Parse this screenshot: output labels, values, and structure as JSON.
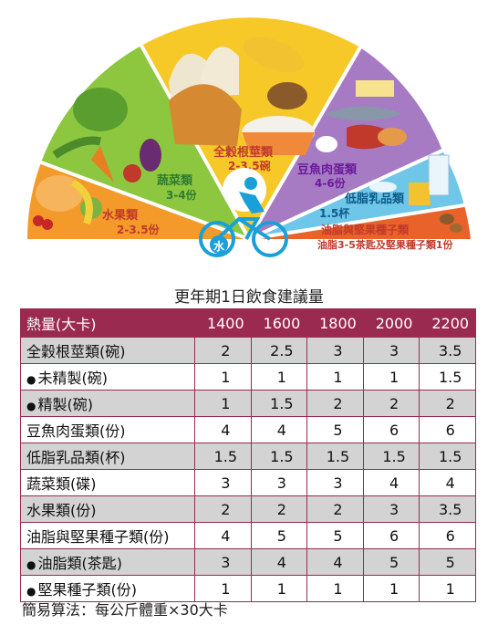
{
  "pyramid": {
    "segments": [
      {
        "name": "水果類",
        "serving": "2-3.5份",
        "color": "#f39a2a"
      },
      {
        "name": "蔬菜類",
        "serving": "3-4份",
        "color": "#8dc63f"
      },
      {
        "name": "全穀根莖類",
        "serving": "2-3.5碗",
        "color": "#f7c928"
      },
      {
        "name": "豆魚肉蛋類",
        "serving": "4-6份",
        "color": "#a77bc4"
      },
      {
        "name": "低脂乳品類",
        "serving": "1.5杯",
        "color": "#6ec6e8"
      },
      {
        "name": "油脂與堅果種子類",
        "serving": "油脂3-5茶匙及堅果種子類1份",
        "color": "#e8622a"
      }
    ],
    "water_label": "水",
    "accent_color": "#1aa0d8"
  },
  "table": {
    "title": "更年期1日飲食建議量",
    "header": {
      "category": "熱量(大卡)",
      "levels": [
        "1400",
        "1600",
        "1800",
        "2000",
        "2200"
      ]
    },
    "rows": [
      {
        "label": "全穀根莖類(碗)",
        "bullet": false,
        "values": [
          "2",
          "2.5",
          "3",
          "3",
          "3.5"
        ]
      },
      {
        "label": "未精製(碗)",
        "bullet": true,
        "values": [
          "1",
          "1",
          "1",
          "1",
          "1.5"
        ]
      },
      {
        "label": "精製(碗)",
        "bullet": true,
        "values": [
          "1",
          "1.5",
          "2",
          "2",
          "2"
        ]
      },
      {
        "label": "豆魚肉蛋類(份)",
        "bullet": false,
        "values": [
          "4",
          "4",
          "5",
          "6",
          "6"
        ]
      },
      {
        "label": "低脂乳品類(杯)",
        "bullet": false,
        "values": [
          "1.5",
          "1.5",
          "1.5",
          "1.5",
          "1.5"
        ]
      },
      {
        "label": "蔬菜類(碟)",
        "bullet": false,
        "values": [
          "3",
          "3",
          "3",
          "4",
          "4"
        ]
      },
      {
        "label": "水果類(份)",
        "bullet": false,
        "values": [
          "2",
          "2",
          "2",
          "3",
          "3.5"
        ]
      },
      {
        "label": "油脂與堅果種子類(份)",
        "bullet": false,
        "values": [
          "4",
          "5",
          "5",
          "6",
          "6"
        ]
      },
      {
        "label": "油脂類(茶匙)",
        "bullet": true,
        "values": [
          "3",
          "4",
          "4",
          "5",
          "5"
        ]
      },
      {
        "label": "堅果種子類(份)",
        "bullet": true,
        "values": [
          "1",
          "1",
          "1",
          "1",
          "1"
        ]
      }
    ],
    "header_color": "#9a2a50"
  },
  "footer": "簡易算法：每公斤體重×30大卡"
}
